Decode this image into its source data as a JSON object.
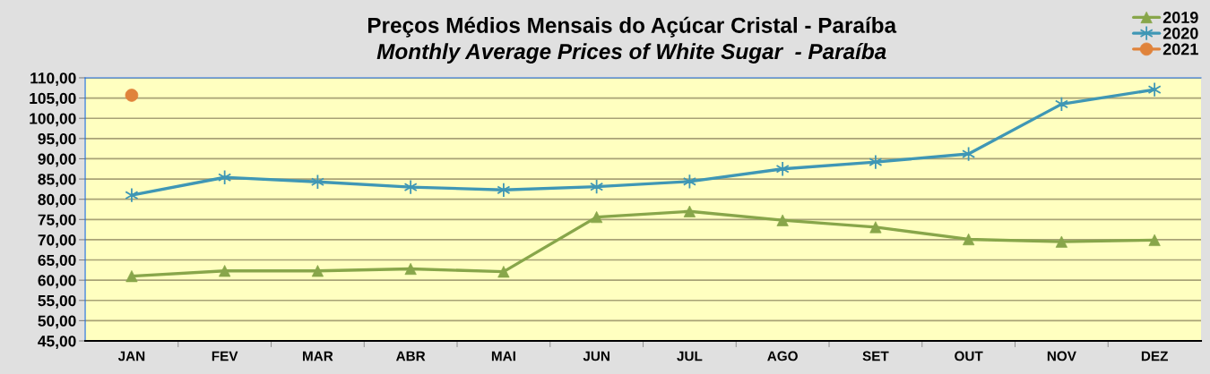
{
  "chart_data": {
    "type": "line",
    "title": "Preços Médios Mensais do Açúcar Cristal - Paraíba",
    "subtitle": "Monthly Average Prices of White Sugar  - Paraíba",
    "categories": [
      "JAN",
      "FEV",
      "MAR",
      "ABR",
      "MAI",
      "JUN",
      "JUL",
      "AGO",
      "SET",
      "OUT",
      "NOV",
      "DEZ"
    ],
    "series": [
      {
        "name": "2019",
        "color": "#88a64a",
        "marker": "triangle",
        "values": [
          61.0,
          62.3,
          62.3,
          62.8,
          62.1,
          75.6,
          77.0,
          74.8,
          73.1,
          70.1,
          69.5,
          69.9
        ]
      },
      {
        "name": "2020",
        "color": "#3f97b5",
        "marker": "cross",
        "values": [
          81.0,
          85.4,
          84.3,
          83.0,
          82.3,
          83.1,
          84.4,
          87.5,
          89.2,
          91.2,
          103.5,
          107.1
        ]
      },
      {
        "name": "2021",
        "color": "#e0833b",
        "marker": "circle",
        "values": [
          105.7,
          null,
          null,
          null,
          null,
          null,
          null,
          null,
          null,
          null,
          null,
          null
        ]
      }
    ],
    "ylim": [
      45,
      110
    ],
    "yticks": [
      {
        "value": 45,
        "label": "45,00"
      },
      {
        "value": 50,
        "label": "50,00"
      },
      {
        "value": 55,
        "label": "55,00"
      },
      {
        "value": 60,
        "label": "60,00"
      },
      {
        "value": 65,
        "label": "65,00"
      },
      {
        "value": 70,
        "label": "70,00"
      },
      {
        "value": 75,
        "label": "75,00"
      },
      {
        "value": 80,
        "label": "80,00"
      },
      {
        "value": 85,
        "label": "85,00"
      },
      {
        "value": 90,
        "label": "90,00"
      },
      {
        "value": 95,
        "label": "95,00"
      },
      {
        "value": 100,
        "label": "100,00"
      },
      {
        "value": 105,
        "label": "105,00"
      },
      {
        "value": 110,
        "label": "110,00"
      }
    ],
    "grid": "y",
    "legend": "top right",
    "line_style": "solid"
  }
}
